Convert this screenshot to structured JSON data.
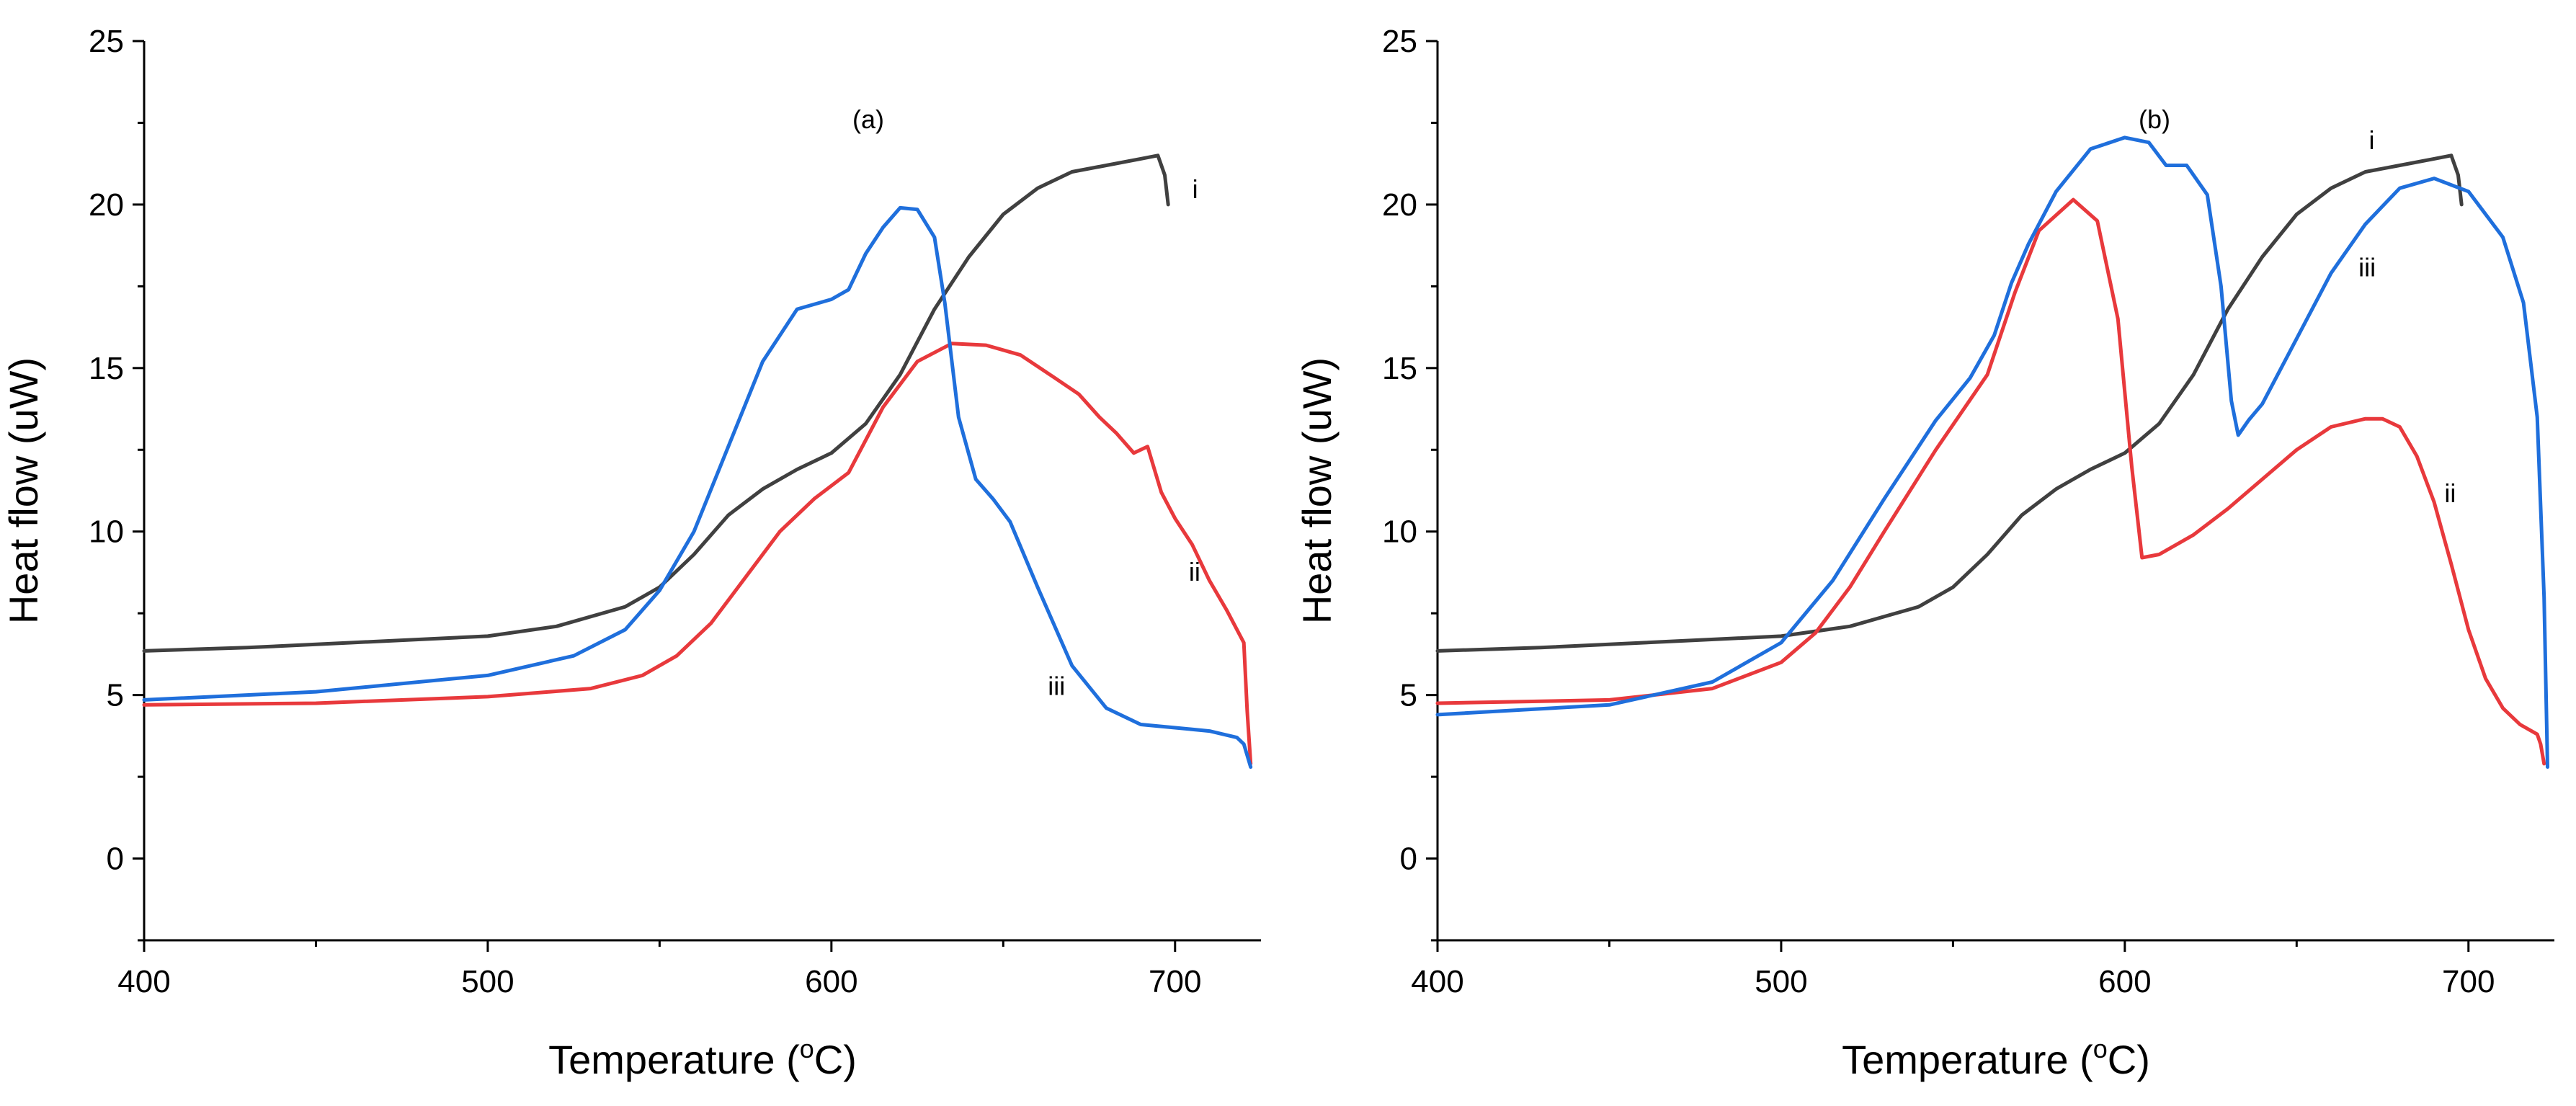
{
  "chart_data": [
    {
      "type": "line",
      "panel_label": "(a)",
      "xlabel": "Temperature (",
      "xlabel_sup": "o",
      "xlabel_end": "C)",
      "ylabel": "Heat flow (uW)",
      "xlim": [
        400,
        725
      ],
      "ylim": [
        -2.5,
        25
      ],
      "xticks": [
        400,
        500,
        600,
        700
      ],
      "yticks": [
        0,
        5,
        10,
        15,
        20,
        25
      ],
      "series": [
        {
          "name": "i",
          "color": "#404040",
          "label_at": [
            705,
            20.2
          ],
          "points": [
            [
              400,
              6.35
            ],
            [
              430,
              6.45
            ],
            [
              460,
              6.6
            ],
            [
              500,
              6.8
            ],
            [
              520,
              7.1
            ],
            [
              540,
              7.7
            ],
            [
              550,
              8.3
            ],
            [
              560,
              9.3
            ],
            [
              570,
              10.5
            ],
            [
              580,
              11.3
            ],
            [
              590,
              11.9
            ],
            [
              600,
              12.4
            ],
            [
              610,
              13.3
            ],
            [
              620,
              14.8
            ],
            [
              630,
              16.8
            ],
            [
              640,
              18.4
            ],
            [
              650,
              19.7
            ],
            [
              660,
              20.5
            ],
            [
              670,
              21.0
            ],
            [
              680,
              21.2
            ],
            [
              690,
              21.4
            ],
            [
              695,
              21.5
            ],
            [
              697,
              20.9
            ],
            [
              698,
              20.0
            ]
          ]
        },
        {
          "name": "ii",
          "color": "#e8393c",
          "label_at": [
            704,
            8.5
          ],
          "points": [
            [
              400,
              4.7
            ],
            [
              450,
              4.75
            ],
            [
              500,
              4.95
            ],
            [
              530,
              5.2
            ],
            [
              545,
              5.6
            ],
            [
              555,
              6.2
            ],
            [
              565,
              7.2
            ],
            [
              575,
              8.6
            ],
            [
              585,
              10.0
            ],
            [
              595,
              11.0
            ],
            [
              605,
              11.8
            ],
            [
              615,
              13.8
            ],
            [
              625,
              15.2
            ],
            [
              635,
              15.75
            ],
            [
              645,
              15.7
            ],
            [
              655,
              15.4
            ],
            [
              665,
              14.7
            ],
            [
              672,
              14.2
            ],
            [
              678,
              13.5
            ],
            [
              683,
              13.0
            ],
            [
              688,
              12.4
            ],
            [
              692,
              12.6
            ],
            [
              696,
              11.2
            ],
            [
              700,
              10.4
            ],
            [
              705,
              9.6
            ],
            [
              710,
              8.5
            ],
            [
              715,
              7.6
            ],
            [
              720,
              6.6
            ],
            [
              721,
              4.5
            ],
            [
              722,
              2.9
            ]
          ]
        },
        {
          "name": "iii",
          "color": "#1f6fdc",
          "label_at": [
            663,
            5.0
          ],
          "points": [
            [
              400,
              4.85
            ],
            [
              450,
              5.1
            ],
            [
              500,
              5.6
            ],
            [
              525,
              6.2
            ],
            [
              540,
              7.0
            ],
            [
              550,
              8.2
            ],
            [
              560,
              10.0
            ],
            [
              570,
              12.6
            ],
            [
              580,
              15.2
            ],
            [
              590,
              16.8
            ],
            [
              600,
              17.1
            ],
            [
              605,
              17.4
            ],
            [
              610,
              18.5
            ],
            [
              615,
              19.3
            ],
            [
              620,
              19.9
            ],
            [
              625,
              19.85
            ],
            [
              630,
              19.0
            ],
            [
              633,
              17.0
            ],
            [
              637,
              13.5
            ],
            [
              642,
              11.6
            ],
            [
              647,
              11.0
            ],
            [
              652,
              10.3
            ],
            [
              660,
              8.3
            ],
            [
              670,
              5.9
            ],
            [
              680,
              4.6
            ],
            [
              690,
              4.1
            ],
            [
              700,
              4.0
            ],
            [
              710,
              3.9
            ],
            [
              718,
              3.7
            ],
            [
              720,
              3.5
            ],
            [
              722,
              2.8
            ]
          ]
        }
      ]
    },
    {
      "type": "line",
      "panel_label": "(b)",
      "xlabel": "Temperature (",
      "xlabel_sup": "o",
      "xlabel_end": "C)",
      "ylabel": "Heat flow (uW)",
      "xlim": [
        400,
        725
      ],
      "ylim": [
        -2.5,
        25
      ],
      "xticks": [
        400,
        500,
        600,
        700
      ],
      "yticks": [
        0,
        5,
        10,
        15,
        20,
        25
      ],
      "series": [
        {
          "name": "i",
          "color": "#404040",
          "label_at": [
            671,
            21.7
          ],
          "points": [
            [
              400,
              6.35
            ],
            [
              430,
              6.45
            ],
            [
              460,
              6.6
            ],
            [
              500,
              6.8
            ],
            [
              520,
              7.1
            ],
            [
              540,
              7.7
            ],
            [
              550,
              8.3
            ],
            [
              560,
              9.3
            ],
            [
              570,
              10.5
            ],
            [
              580,
              11.3
            ],
            [
              590,
              11.9
            ],
            [
              600,
              12.4
            ],
            [
              610,
              13.3
            ],
            [
              620,
              14.8
            ],
            [
              630,
              16.8
            ],
            [
              640,
              18.4
            ],
            [
              650,
              19.7
            ],
            [
              660,
              20.5
            ],
            [
              670,
              21.0
            ],
            [
              680,
              21.2
            ],
            [
              690,
              21.4
            ],
            [
              695,
              21.5
            ],
            [
              697,
              20.9
            ],
            [
              698,
              20.0
            ]
          ]
        },
        {
          "name": "ii",
          "color": "#e8393c",
          "label_at": [
            693,
            10.9
          ],
          "points": [
            [
              400,
              4.75
            ],
            [
              450,
              4.85
            ],
            [
              480,
              5.2
            ],
            [
              500,
              6.0
            ],
            [
              510,
              6.9
            ],
            [
              520,
              8.3
            ],
            [
              530,
              10.0
            ],
            [
              545,
              12.5
            ],
            [
              560,
              14.8
            ],
            [
              568,
              17.3
            ],
            [
              575,
              19.2
            ],
            [
              585,
              20.15
            ],
            [
              592,
              19.5
            ],
            [
              598,
              16.5
            ],
            [
              602,
              12.0
            ],
            [
              605,
              9.2
            ],
            [
              610,
              9.3
            ],
            [
              620,
              9.9
            ],
            [
              630,
              10.7
            ],
            [
              640,
              11.6
            ],
            [
              650,
              12.5
            ],
            [
              660,
              13.2
            ],
            [
              670,
              13.45
            ],
            [
              675,
              13.45
            ],
            [
              680,
              13.2
            ],
            [
              685,
              12.3
            ],
            [
              690,
              10.9
            ],
            [
              695,
              9.0
            ],
            [
              700,
              7.0
            ],
            [
              705,
              5.5
            ],
            [
              710,
              4.6
            ],
            [
              715,
              4.1
            ],
            [
              720,
              3.8
            ],
            [
              721,
              3.5
            ],
            [
              722,
              2.9
            ]
          ]
        },
        {
          "name": "iii",
          "color": "#1f6fdc",
          "label_at": [
            668,
            17.8
          ],
          "points": [
            [
              400,
              4.4
            ],
            [
              450,
              4.7
            ],
            [
              480,
              5.4
            ],
            [
              500,
              6.6
            ],
            [
              515,
              8.5
            ],
            [
              530,
              11.0
            ],
            [
              545,
              13.4
            ],
            [
              555,
              14.7
            ],
            [
              562,
              16.0
            ],
            [
              567,
              17.6
            ],
            [
              572,
              18.8
            ],
            [
              580,
              20.4
            ],
            [
              590,
              21.7
            ],
            [
              600,
              22.05
            ],
            [
              607,
              21.9
            ],
            [
              612,
              21.2
            ],
            [
              618,
              21.2
            ],
            [
              624,
              20.3
            ],
            [
              628,
              17.5
            ],
            [
              631,
              14.0
            ],
            [
              633,
              12.95
            ],
            [
              636,
              13.4
            ],
            [
              640,
              13.9
            ],
            [
              650,
              15.9
            ],
            [
              660,
              17.9
            ],
            [
              670,
              19.4
            ],
            [
              680,
              20.5
            ],
            [
              690,
              20.8
            ],
            [
              700,
              20.4
            ],
            [
              710,
              19.0
            ],
            [
              716,
              17.0
            ],
            [
              720,
              13.5
            ],
            [
              722,
              8.0
            ],
            [
              723,
              2.8
            ]
          ]
        }
      ]
    }
  ]
}
